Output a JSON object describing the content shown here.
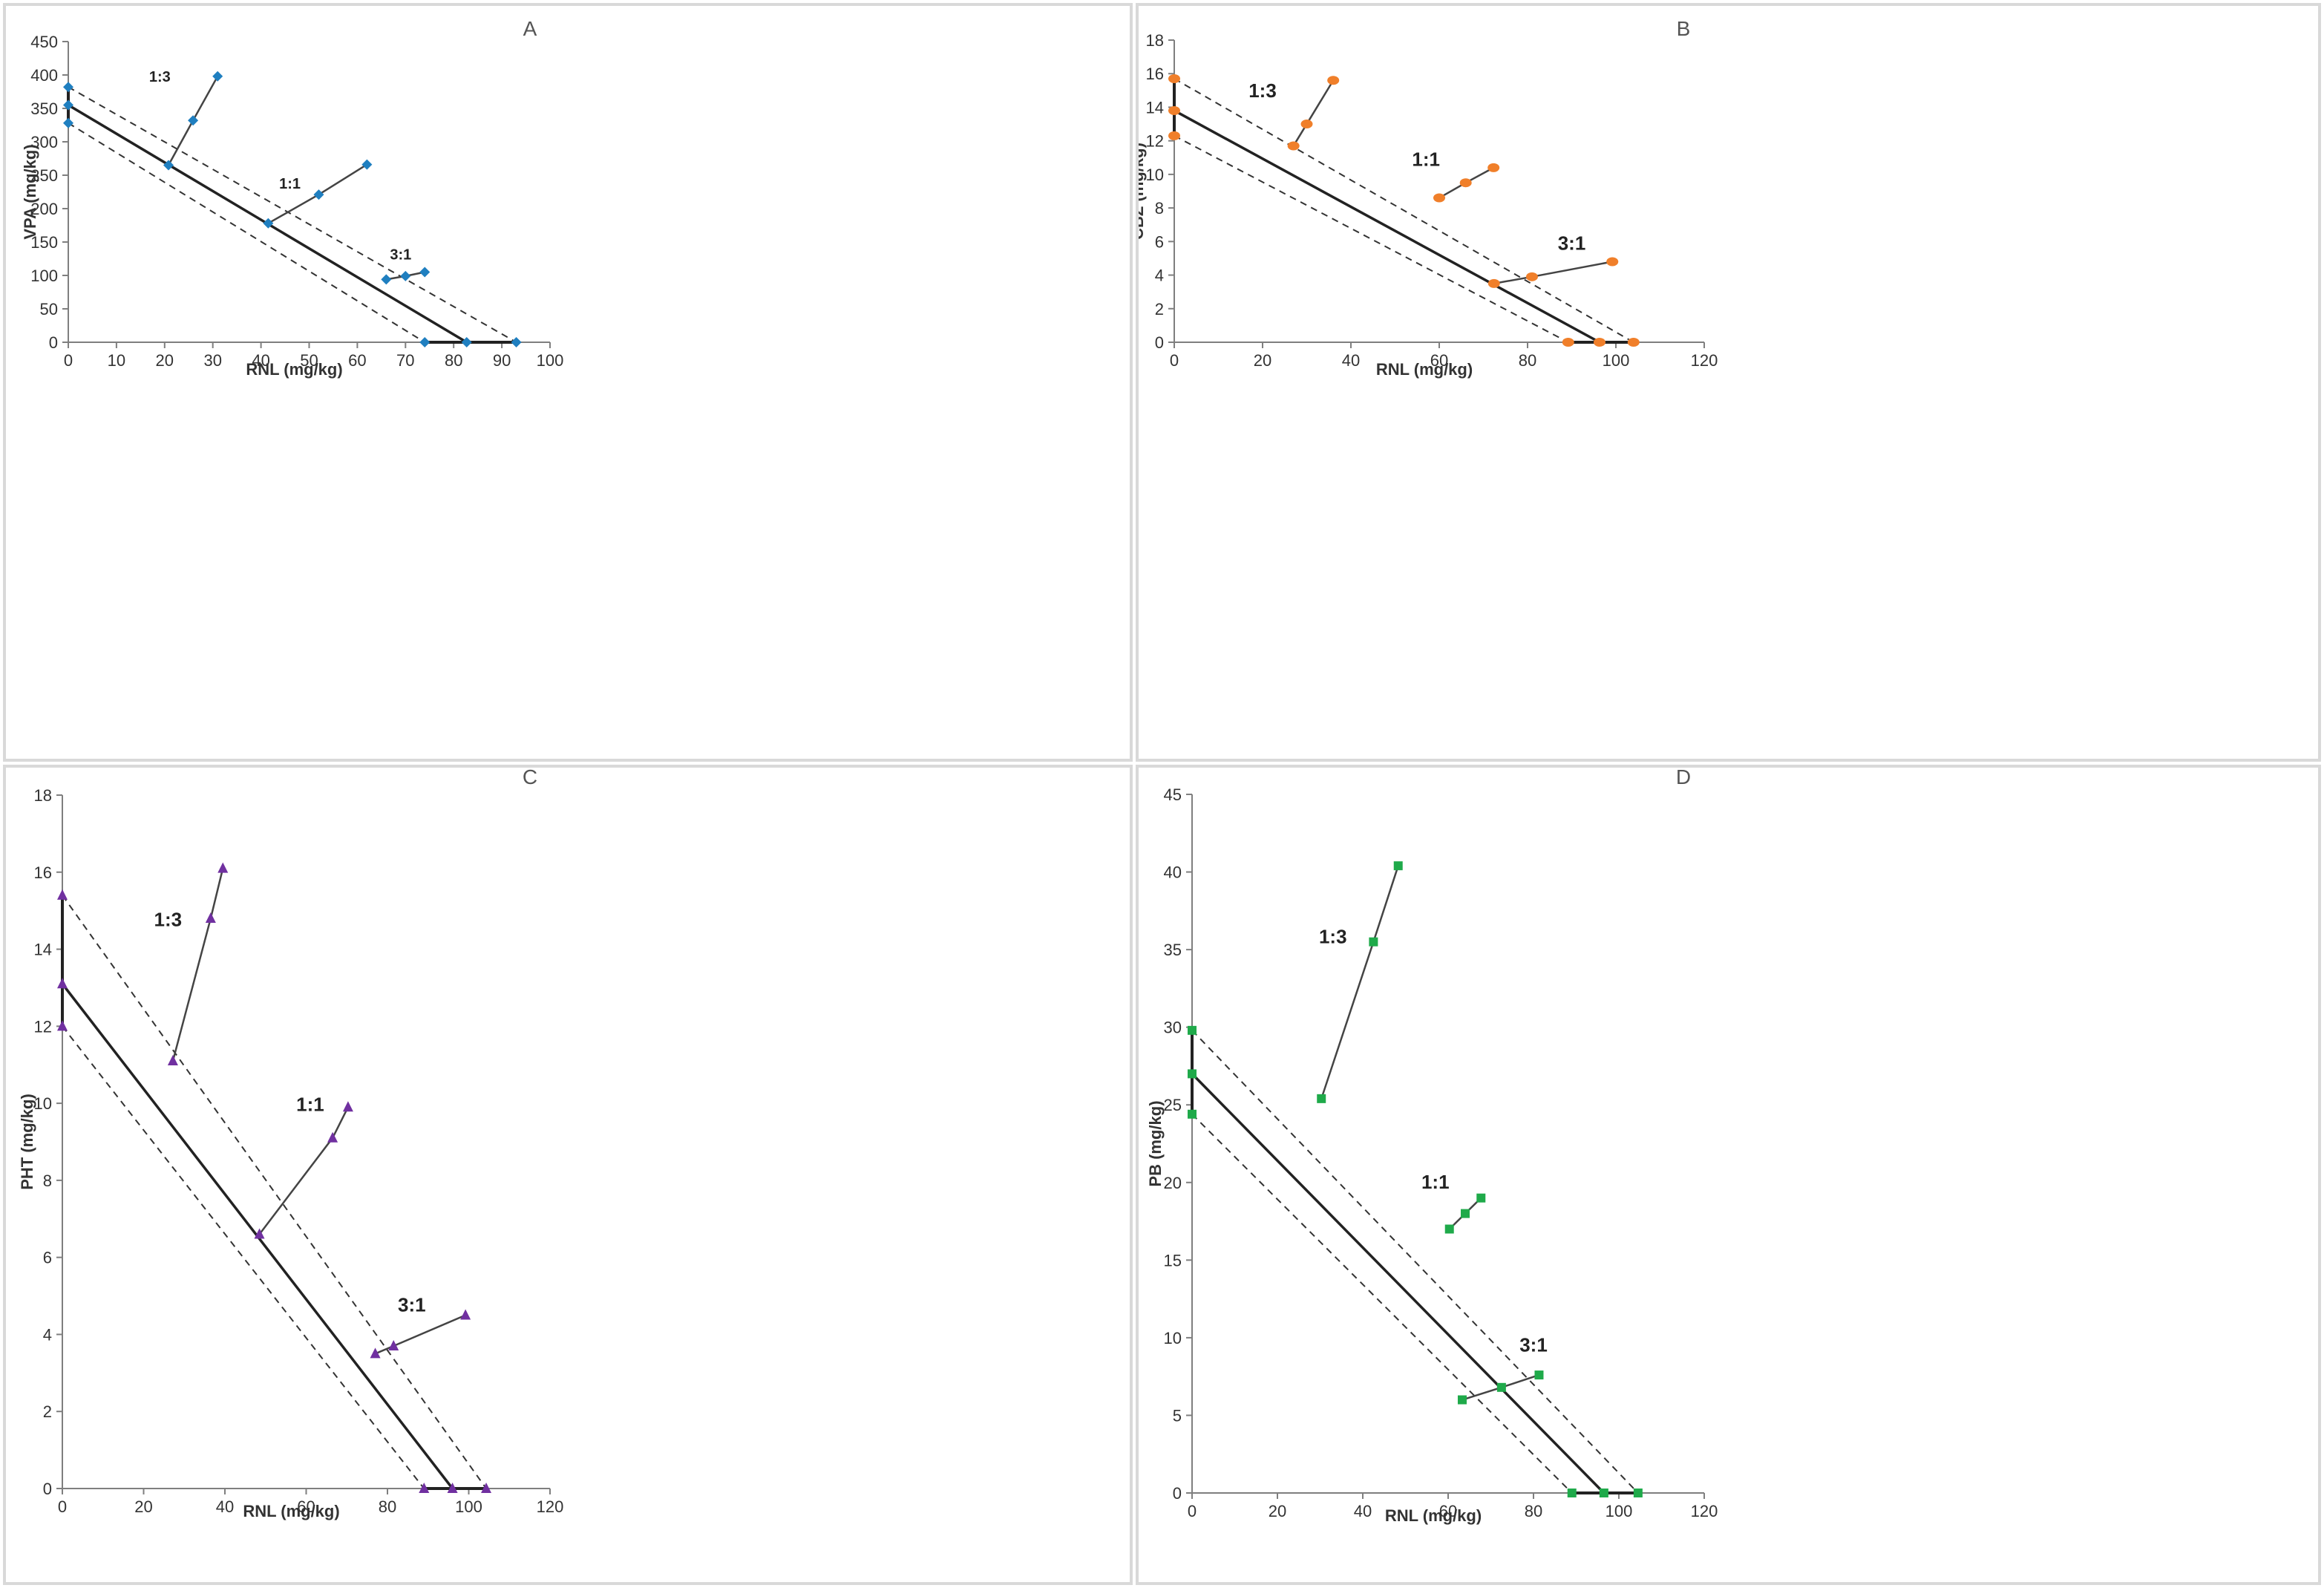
{
  "chart_data": [
    {
      "type": "scatter",
      "panel_label": "A",
      "xlabel": "RNL (mg/kg)",
      "ylabel": "VPA (mg/kg)",
      "xlim": [
        0,
        100
      ],
      "ylim": [
        0,
        450
      ],
      "xticks": [
        "0",
        "10",
        "20",
        "30",
        "40",
        "50",
        "60",
        "70",
        "80",
        "90",
        "100"
      ],
      "yticks": [
        "0",
        "50",
        "100",
        "150",
        "200",
        "250",
        "300",
        "350",
        "400",
        "450"
      ],
      "color": "#1f7fc0",
      "marker": "diamond",
      "isobole": {
        "ed50": [
          0,
          355
        ],
        "upper": [
          0,
          382
        ],
        "lower": [
          0,
          328
        ],
        "x_ed50": 82.7,
        "x_upper": 93,
        "x_lower": 74
      },
      "series": [
        {
          "name": "1:3",
          "x": [
            20.8,
            25.9,
            31
          ],
          "y": [
            265,
            332,
            398
          ],
          "label_at": [
            19,
            390
          ]
        },
        {
          "name": "1:1",
          "x": [
            41.5,
            52,
            62
          ],
          "y": [
            178,
            221,
            266
          ],
          "label_at": [
            46,
            230
          ]
        },
        {
          "name": "3:1",
          "x": [
            66,
            70,
            74
          ],
          "y": [
            94,
            99,
            105
          ],
          "label_at": [
            69,
            124
          ]
        }
      ]
    },
    {
      "type": "scatter",
      "panel_label": "B",
      "xlabel": "RNL (mg/kg)",
      "ylabel": "CBZ (mg/kg)",
      "xlim": [
        0,
        120
      ],
      "ylim": [
        0,
        18
      ],
      "xticks": [
        "0",
        "20",
        "40",
        "60",
        "80",
        "100",
        "120"
      ],
      "yticks": [
        "0",
        "2",
        "4",
        "6",
        "8",
        "10",
        "12",
        "14",
        "16",
        "18"
      ],
      "color": "#f07f2a",
      "marker": "circle",
      "isobole": {
        "ed50": [
          0,
          13.8
        ],
        "upper": [
          0,
          15.7
        ],
        "lower": [
          0,
          12.3
        ],
        "x_ed50": 96.3,
        "x_upper": 104,
        "x_lower": 89.2
      },
      "series": [
        {
          "name": "1:3",
          "x": [
            27,
            30,
            36
          ],
          "y": [
            11.7,
            13,
            15.6
          ],
          "label_at": [
            20,
            14.6
          ]
        },
        {
          "name": "1:1",
          "x": [
            60,
            66,
            72.3
          ],
          "y": [
            8.6,
            9.5,
            10.4
          ],
          "label_at": [
            57,
            10.5
          ]
        },
        {
          "name": "3:1",
          "x": [
            72.4,
            81,
            99.2
          ],
          "y": [
            3.5,
            3.9,
            4.8
          ],
          "label_at": [
            90,
            5.5
          ]
        }
      ]
    },
    {
      "type": "scatter",
      "panel_label": "C",
      "xlabel": "RNL (mg/kg)",
      "ylabel": "PHT (mg/kg)",
      "xlim": [
        0,
        120
      ],
      "ylim": [
        0,
        18
      ],
      "xticks": [
        "0",
        "20",
        "40",
        "60",
        "80",
        "100",
        "120"
      ],
      "yticks": [
        "0",
        "2",
        "4",
        "6",
        "8",
        "10",
        "12",
        "14",
        "16",
        "18"
      ],
      "color": "#7030a0",
      "marker": "triangle",
      "isobole": {
        "ed50": [
          0,
          13.1
        ],
        "upper": [
          0,
          15.4
        ],
        "lower": [
          0,
          12
        ],
        "x_ed50": 96,
        "x_upper": 104.3,
        "x_lower": 89
      },
      "series": [
        {
          "name": "1:3",
          "x": [
            27.2,
            36.5,
            39.5
          ],
          "y": [
            11.1,
            14.8,
            16.1
          ],
          "label_at": [
            26,
            14.6
          ]
        },
        {
          "name": "1:1",
          "x": [
            48.5,
            66.5,
            70.3
          ],
          "y": [
            6.6,
            9.1,
            9.9
          ],
          "label_at": [
            61,
            9.8
          ]
        },
        {
          "name": "3:1",
          "x": [
            77,
            81.5,
            99.2
          ],
          "y": [
            3.5,
            3.7,
            4.5
          ],
          "label_at": [
            86,
            4.6
          ]
        }
      ]
    },
    {
      "type": "scatter",
      "panel_label": "D",
      "xlabel": "RNL (mg/kg)",
      "ylabel": "PB (mg/kg)",
      "xlim": [
        0,
        120
      ],
      "ylim": [
        0,
        45
      ],
      "xticks": [
        "0",
        "20",
        "40",
        "60",
        "80",
        "100",
        "120"
      ],
      "yticks": [
        "0",
        "5",
        "10",
        "15",
        "20",
        "25",
        "30",
        "35",
        "40",
        "45"
      ],
      "color": "#1faa4a",
      "marker": "square",
      "isobole": {
        "ed50": [
          0,
          27
        ],
        "upper": [
          0,
          29.8
        ],
        "lower": [
          0,
          24.4
        ],
        "x_ed50": 96.5,
        "x_upper": 104.5,
        "x_lower": 89
      },
      "series": [
        {
          "name": "1:3",
          "x": [
            30.3,
            42.5,
            48.3
          ],
          "y": [
            25.4,
            35.5,
            40.4
          ],
          "label_at": [
            33,
            35.4
          ]
        },
        {
          "name": "1:1",
          "x": [
            60.3,
            64,
            67.7
          ],
          "y": [
            17,
            18,
            19
          ],
          "label_at": [
            57,
            19.6
          ]
        },
        {
          "name": "3:1",
          "x": [
            63.3,
            72.5,
            81.3
          ],
          "y": [
            6,
            6.8,
            7.6
          ],
          "label_at": [
            80,
            9.1
          ]
        }
      ]
    }
  ]
}
